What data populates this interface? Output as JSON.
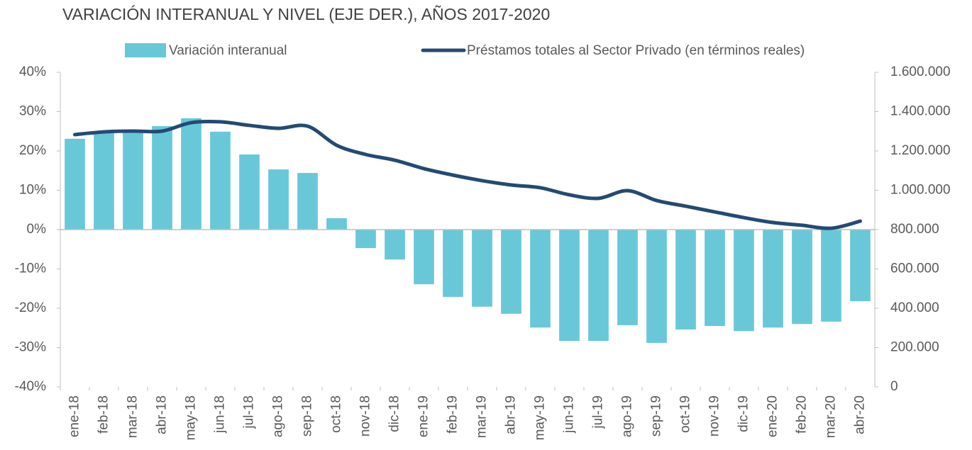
{
  "chart_data": {
    "type": "bar_line",
    "title": "VARIACIÓN INTERANUAL Y NIVEL (EJE DER.), AÑOS 2017-2020",
    "categories": [
      "ene-18",
      "feb-18",
      "mar-18",
      "abr-18",
      "may-18",
      "jun-18",
      "jul-18",
      "ago-18",
      "sep-18",
      "oct-18",
      "nov-18",
      "dic-18",
      "ene-19",
      "feb-19",
      "mar-19",
      "abr-19",
      "may-19",
      "jun-19",
      "jul-19",
      "ago-19",
      "sep-19",
      "oct-19",
      "nov-19",
      "dic-19",
      "ene-20",
      "feb-20",
      "mar-20",
      "abr-20"
    ],
    "series": [
      {
        "name": "Variación interanual",
        "type": "bar",
        "color": "#68c8d8",
        "axis": "y",
        "values": [
          23.1,
          24.5,
          24.9,
          26.3,
          28.3,
          24.9,
          19.1,
          15.3,
          14.4,
          2.9,
          -4.7,
          -7.6,
          -13.9,
          -17.1,
          -19.6,
          -21.4,
          -24.9,
          -28.3,
          -28.3,
          -24.3,
          -28.8,
          -25.4,
          -24.5,
          -25.8,
          -24.9,
          -24.0,
          -23.4,
          -18.2
        ]
      },
      {
        "name": "Préstamos totales al Sector Privado (en términos reales)",
        "type": "line",
        "color": "#254a72",
        "axis": "y2",
        "values": [
          1283000,
          1297000,
          1301000,
          1301000,
          1344000,
          1348000,
          1330000,
          1315000,
          1326000,
          1229000,
          1182000,
          1153000,
          1110000,
          1077000,
          1049000,
          1027000,
          1013000,
          977000,
          959000,
          998000,
          948000,
          919000,
          890000,
          861000,
          836000,
          822000,
          807000,
          843000
        ]
      }
    ],
    "ylim": [
      -40,
      40
    ],
    "yticks": [
      {
        "value": -40,
        "label": "-40%"
      },
      {
        "value": -30,
        "label": "-30%"
      },
      {
        "value": -20,
        "label": "-20%"
      },
      {
        "value": -10,
        "label": "-10%"
      },
      {
        "value": 0,
        "label": "0%"
      },
      {
        "value": 10,
        "label": "10%"
      },
      {
        "value": 20,
        "label": "20%"
      },
      {
        "value": 30,
        "label": "30%"
      },
      {
        "value": 40,
        "label": "40%"
      }
    ],
    "y2lim": [
      0,
      1600000
    ],
    "y2ticks": [
      0,
      {
        "value": 200000,
        "label": "200.000"
      },
      {
        "value": 400000,
        "label": "400.000"
      },
      {
        "value": 600000,
        "label": "600.000"
      },
      {
        "value": 800000,
        "label": "800.000"
      },
      {
        "value": 1000000,
        "label": "1.000.000"
      },
      {
        "value": 1200000,
        "label": "1.200.000"
      },
      {
        "value": 1400000,
        "label": "1.400.000"
      },
      {
        "value": 1600000,
        "label": "1.600.000"
      }
    ],
    "grid": false,
    "legend": "top"
  }
}
